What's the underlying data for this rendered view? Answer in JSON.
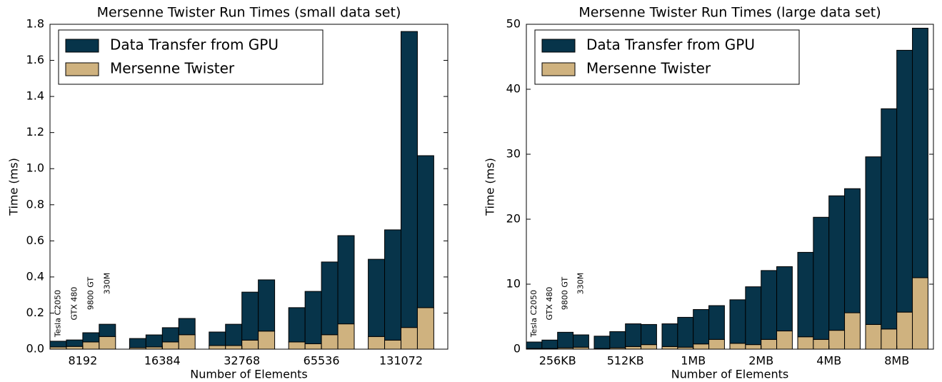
{
  "chart_data": [
    {
      "type": "stacked-bar",
      "title": "Mersenne Twister Run Times (small data set)",
      "x_label": "Number of Elements",
      "y_label": "Time (ms)",
      "categories": [
        "8192",
        "16384",
        "32768",
        "65536",
        "131072"
      ],
      "bar_labels": [
        "Tesla C2050",
        "GTX 480",
        "9800 GT",
        "330M"
      ],
      "legend": "upper left",
      "series": [
        {
          "name": "Mersenne Twister",
          "color": "#cfb27f",
          "values": [
            [
              0.012,
              0.015,
              0.04,
              0.07
            ],
            [
              0.008,
              0.012,
              0.04,
              0.08
            ],
            [
              0.02,
              0.02,
              0.05,
              0.1
            ],
            [
              0.04,
              0.03,
              0.08,
              0.14
            ],
            [
              0.07,
              0.05,
              0.12,
              0.23
            ]
          ]
        },
        {
          "name": "Data Transfer from GPU",
          "color": "#07344a",
          "values": [
            [
              0.032,
              0.036,
              0.051,
              0.068
            ],
            [
              0.051,
              0.067,
              0.079,
              0.09
            ],
            [
              0.075,
              0.118,
              0.266,
              0.284
            ],
            [
              0.19,
              0.29,
              0.403,
              0.489
            ],
            [
              0.428,
              0.611,
              1.64,
              0.842
            ]
          ]
        }
      ],
      "ylim": [
        0,
        1.8
      ],
      "yticks": [
        {
          "value": 0,
          "label": "0.0"
        },
        0.2,
        0.4,
        0.6,
        0.8,
        {
          "value": 1,
          "label": "1.0"
        },
        1.2,
        1.4,
        1.6,
        1.8
      ]
    },
    {
      "type": "stacked-bar",
      "title": "Mersenne Twister Run Times (large data set)",
      "x_label": "Number of Elements",
      "y_label": "Time (ms)",
      "categories": [
        "256KB",
        "512KB",
        "1MB",
        "2MB",
        "4MB",
        "8MB"
      ],
      "bar_labels": [
        "Tesla C2050",
        "GTX 480",
        "9800 GT",
        "330M"
      ],
      "legend": "upper left",
      "series": [
        {
          "name": "Mersenne Twister",
          "color": "#cfb27f",
          "values": [
            [
              0.1,
              0.1,
              0.2,
              0.3
            ],
            [
              0.1,
              0.2,
              0.4,
              0.7
            ],
            [
              0.4,
              0.3,
              0.8,
              1.5
            ],
            [
              0.9,
              0.7,
              1.5,
              2.8
            ],
            [
              1.9,
              1.5,
              2.9,
              5.6
            ],
            [
              3.8,
              3.1,
              5.7,
              11.0
            ]
          ]
        },
        {
          "name": "Data Transfer from GPU",
          "color": "#07344a",
          "values": [
            [
              1.0,
              1.3,
              2.4,
              1.9
            ],
            [
              1.9,
              2.5,
              3.5,
              3.1
            ],
            [
              3.5,
              4.6,
              5.3,
              5.2
            ],
            [
              6.7,
              8.9,
              10.6,
              9.9
            ],
            [
              13.0,
              18.8,
              20.7,
              19.1
            ],
            [
              25.8,
              33.9,
              40.3,
              38.4
            ]
          ]
        }
      ],
      "ylim": [
        0,
        50
      ],
      "yticks": [
        0,
        10,
        20,
        30,
        40,
        50
      ]
    }
  ]
}
